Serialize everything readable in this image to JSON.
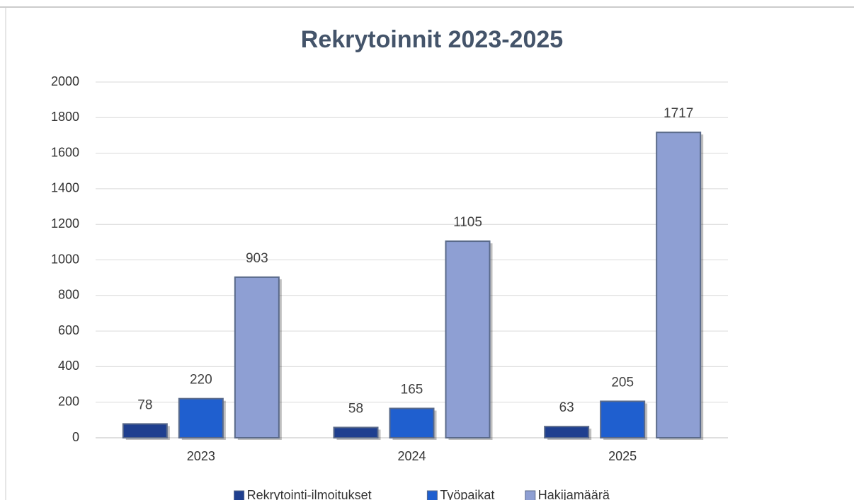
{
  "chart_data": {
    "type": "bar",
    "title": "Rekrytoinnit 2023-2025",
    "categories": [
      "2023",
      "2024",
      "2025"
    ],
    "series": [
      {
        "name": "Rekrytointi-ilmoitukset",
        "color": "#1f3f8f",
        "values": [
          78,
          58,
          63
        ]
      },
      {
        "name": "Työpaikat",
        "color": "#1f5fcf",
        "values": [
          220,
          165,
          205
        ]
      },
      {
        "name": "Hakijamäärä",
        "color": "#8e9fd3",
        "values": [
          903,
          1105,
          1717
        ]
      }
    ],
    "ylim": [
      0,
      2000
    ],
    "yticks": [
      0,
      200,
      400,
      600,
      800,
      1000,
      1200,
      1400,
      1600,
      1800,
      2000
    ],
    "grid": true,
    "legend": "bottom"
  }
}
